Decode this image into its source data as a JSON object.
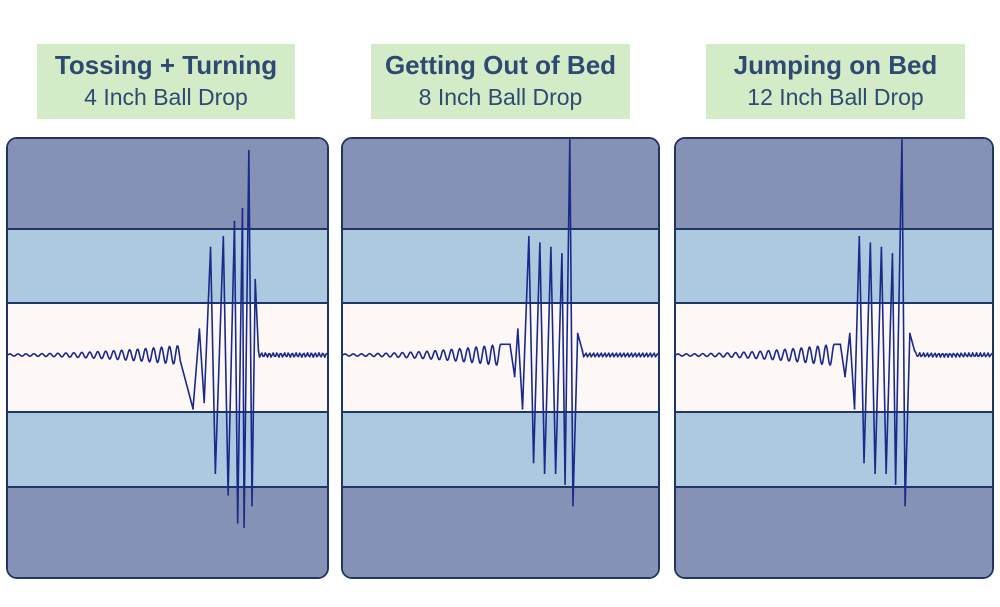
{
  "colors": {
    "label_bg": "#d4ebc7",
    "label_text": "#2f4a72",
    "outer_band": "#8592b5",
    "middle_band": "#adc9e0",
    "center_band": "#fdf7f6",
    "band_border": "#1f3566",
    "waveform": "#1a2a8a"
  },
  "panels": [
    {
      "title": "Tossing + Turning",
      "subtitle": "4 Inch Ball Drop"
    },
    {
      "title": "Getting Out of Bed",
      "subtitle": "8 Inch Ball Drop"
    },
    {
      "title": "Jumping on Bed",
      "subtitle": "12 Inch Ball Drop"
    }
  ],
  "chart_data": [
    {
      "type": "line",
      "title": "Tossing + Turning",
      "subtitle": "4 Inch Ball Drop",
      "bands": [
        "outer",
        "middle",
        "center",
        "middle",
        "outer"
      ],
      "baseline": 0,
      "ylim": [
        -1,
        1
      ],
      "ripple": {
        "start": 0.0,
        "end": 0.54,
        "amp_start": 0.005,
        "amp_end": 0.045,
        "period": 0.025
      },
      "peaks": [
        {
          "x": 0.58,
          "y": -0.25
        },
        {
          "x": 0.6,
          "y": 0.12
        },
        {
          "x": 0.615,
          "y": -0.22
        },
        {
          "x": 0.635,
          "y": 0.5
        },
        {
          "x": 0.65,
          "y": -0.55
        },
        {
          "x": 0.675,
          "y": 0.55
        },
        {
          "x": 0.69,
          "y": -0.65
        },
        {
          "x": 0.71,
          "y": 0.62
        },
        {
          "x": 0.72,
          "y": -0.78
        },
        {
          "x": 0.735,
          "y": 0.68
        },
        {
          "x": 0.74,
          "y": -0.8
        },
        {
          "x": 0.755,
          "y": 0.95
        },
        {
          "x": 0.765,
          "y": -0.7
        },
        {
          "x": 0.775,
          "y": 0.35
        },
        {
          "x": 0.785,
          "y": 0.02
        }
      ],
      "tail": {
        "start": 0.785,
        "end": 1.0,
        "amp": 0.01
      }
    },
    {
      "type": "line",
      "title": "Getting Out of Bed",
      "subtitle": "8 Inch Ball Drop",
      "bands": [
        "outer",
        "middle",
        "center",
        "middle",
        "outer"
      ],
      "baseline": 0,
      "ylim": [
        -1,
        1
      ],
      "ripple": {
        "start": 0.0,
        "end": 0.5,
        "amp_start": 0.005,
        "amp_end": 0.05,
        "period": 0.026
      },
      "peaks": [
        {
          "x": 0.53,
          "y": 0.05
        },
        {
          "x": 0.545,
          "y": -0.1
        },
        {
          "x": 0.555,
          "y": 0.12
        },
        {
          "x": 0.57,
          "y": -0.25
        },
        {
          "x": 0.59,
          "y": 0.55
        },
        {
          "x": 0.605,
          "y": -0.5
        },
        {
          "x": 0.625,
          "y": 0.52
        },
        {
          "x": 0.64,
          "y": -0.55
        },
        {
          "x": 0.66,
          "y": 0.5
        },
        {
          "x": 0.675,
          "y": -0.55
        },
        {
          "x": 0.695,
          "y": 0.47
        },
        {
          "x": 0.705,
          "y": -0.6
        },
        {
          "x": 0.72,
          "y": 1.0
        },
        {
          "x": 0.73,
          "y": -0.7
        },
        {
          "x": 0.745,
          "y": 0.1
        },
        {
          "x": 0.76,
          "y": 0.02
        }
      ],
      "tail": {
        "start": 0.76,
        "end": 1.0,
        "amp": 0.01
      }
    },
    {
      "type": "line",
      "title": "Jumping on Bed",
      "subtitle": "12 Inch Ball Drop",
      "bands": [
        "outer",
        "middle",
        "center",
        "middle",
        "outer"
      ],
      "baseline": 0,
      "ylim": [
        -1,
        1
      ],
      "ripple": {
        "start": 0.0,
        "end": 0.5,
        "amp_start": 0.005,
        "amp_end": 0.05,
        "period": 0.026
      },
      "peaks": [
        {
          "x": 0.52,
          "y": 0.05
        },
        {
          "x": 0.535,
          "y": -0.1
        },
        {
          "x": 0.55,
          "y": 0.1
        },
        {
          "x": 0.565,
          "y": -0.25
        },
        {
          "x": 0.58,
          "y": 0.55
        },
        {
          "x": 0.595,
          "y": -0.5
        },
        {
          "x": 0.615,
          "y": 0.52
        },
        {
          "x": 0.63,
          "y": -0.55
        },
        {
          "x": 0.65,
          "y": 0.5
        },
        {
          "x": 0.665,
          "y": -0.55
        },
        {
          "x": 0.685,
          "y": 0.47
        },
        {
          "x": 0.695,
          "y": -0.6
        },
        {
          "x": 0.715,
          "y": 1.0
        },
        {
          "x": 0.725,
          "y": -0.7
        },
        {
          "x": 0.74,
          "y": 0.1
        },
        {
          "x": 0.755,
          "y": 0.02
        }
      ],
      "tail": {
        "start": 0.755,
        "end": 1.0,
        "amp": 0.01
      }
    }
  ]
}
